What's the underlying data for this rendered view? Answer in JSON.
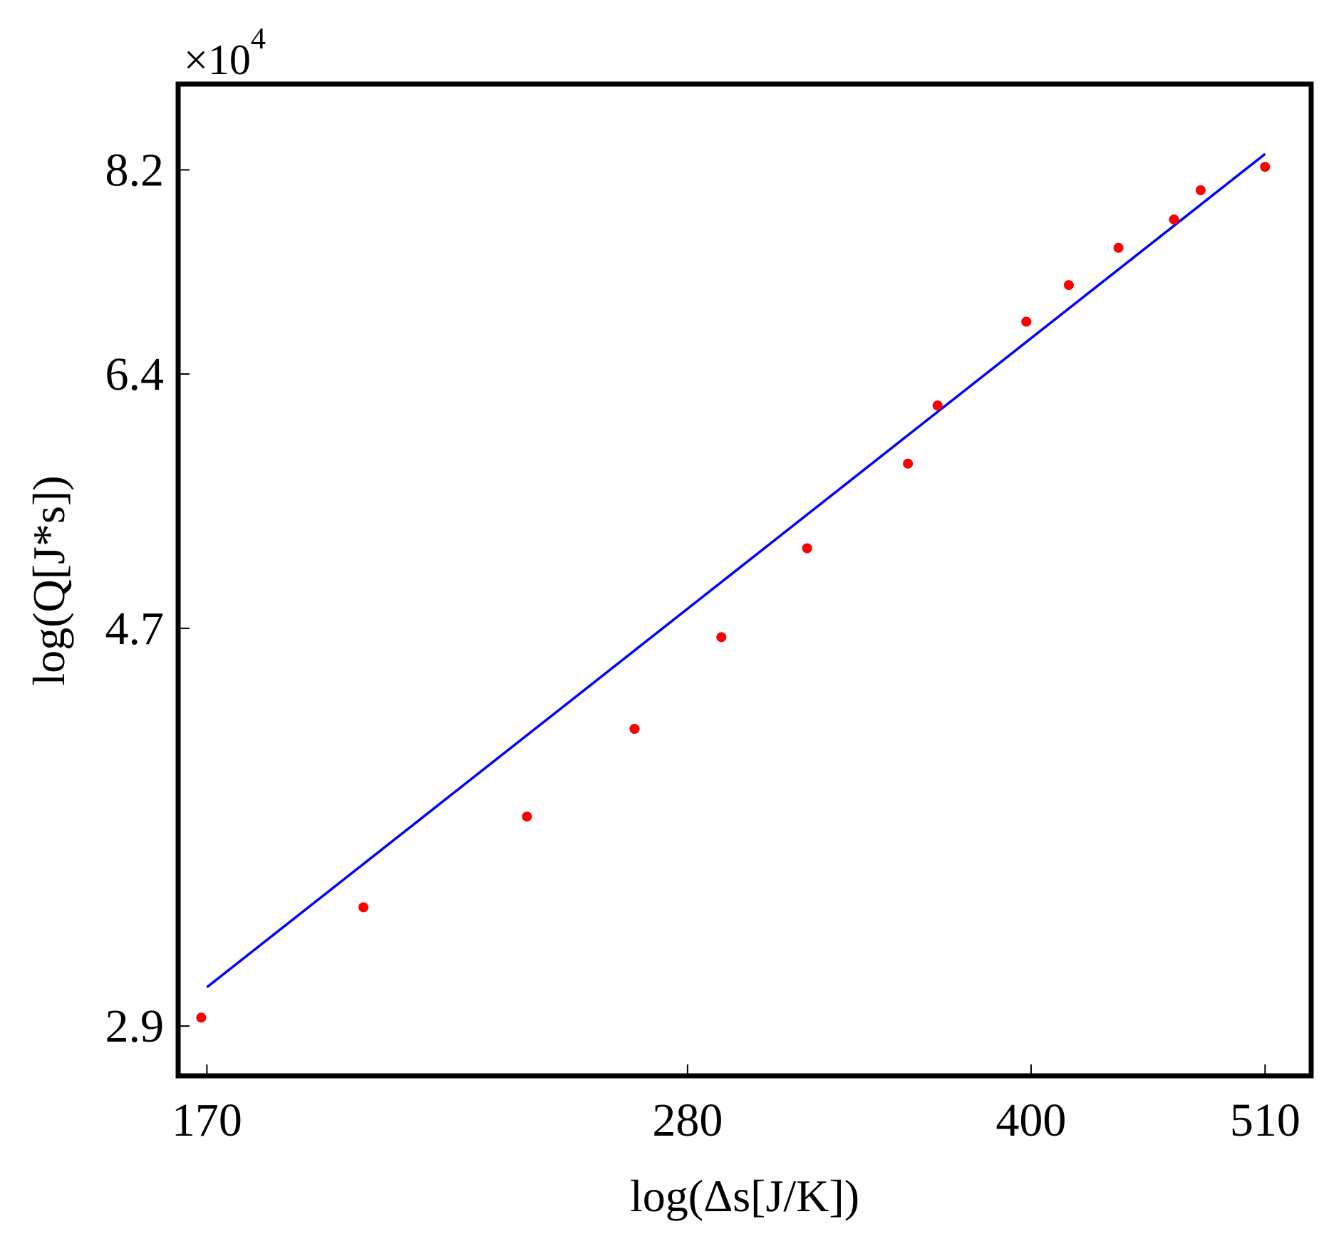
{
  "chart_data": {
    "type": "scatter",
    "xscale": "log",
    "yscale": "log",
    "xlabel": "log(Δs[J/K])",
    "ylabel": "log(Q[J*s])",
    "y_multiplier": {
      "base": "×10",
      "exponent": "4"
    },
    "xlim": [
      165,
      535
    ],
    "ylim": [
      27300,
      91000
    ],
    "x_ticks": [
      {
        "value": 170,
        "label": "170"
      },
      {
        "value": 280,
        "label": "280"
      },
      {
        "value": 400,
        "label": "400"
      },
      {
        "value": 510,
        "label": "510"
      }
    ],
    "y_ticks": [
      {
        "value": 29000,
        "label": "2.9"
      },
      {
        "value": 47000,
        "label": "4.7"
      },
      {
        "value": 64000,
        "label": "6.4"
      },
      {
        "value": 82000,
        "label": "8.2"
      }
    ],
    "grid": false,
    "series": [
      {
        "kind": "points",
        "color": "#ff0000",
        "x": [
          169,
          200,
          237,
          265,
          290,
          317,
          352,
          363,
          398,
          416,
          438,
          464,
          477,
          510
        ],
        "y": [
          29300,
          33500,
          37400,
          41600,
          46500,
          51800,
          57400,
          61600,
          68200,
          71300,
          74600,
          77200,
          80000,
          82300
        ]
      },
      {
        "kind": "fit-line",
        "color": "#0000ff",
        "x": [
          170,
          510
        ],
        "y": [
          30400,
          83600
        ]
      }
    ]
  }
}
